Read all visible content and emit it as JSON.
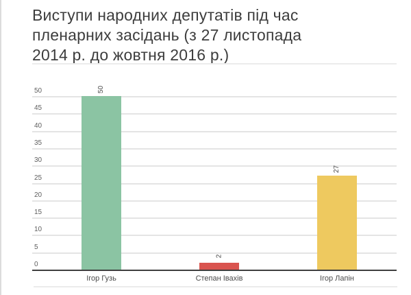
{
  "page": {
    "title": "Виступи народних депутатів під час пленарних засідань (з 27 листопада 2014 р. до жовтня 2016 р.)",
    "title_lines": [
      "Виступи народних депутатів під час",
      "пленарних засідань (з 27 листопада",
      "2014 р. до жовтня 2016 р.)"
    ]
  },
  "chart_data": {
    "type": "bar",
    "title": "Виступи народних депутатів під час пленарних засідань (з 27 листопада 2014 р. до жовтня 2016 р.)",
    "categories": [
      "Ігор Гузь",
      "Степан Івахів",
      "Ігор Лапін"
    ],
    "values": [
      50,
      2,
      27
    ],
    "value_labels": [
      "50",
      "2",
      "27"
    ],
    "bar_colors": [
      "#8bc4a3",
      "#d9544f",
      "#eec95f"
    ],
    "xlabel": "",
    "ylabel": "",
    "ylim": [
      0,
      50
    ],
    "yticks": [
      0,
      5,
      10,
      15,
      20,
      25,
      30,
      35,
      40,
      45,
      50
    ],
    "grid": true,
    "legend": "none",
    "value_label_rotation_deg": -90
  },
  "colors": {
    "title_text": "#3d3d3d",
    "axis_text": "#5e5e5e",
    "category_text": "#4a4a4a",
    "gridline": "#e4e4e4",
    "baseline": "#3f3f3f",
    "divider": "#ebebeb",
    "left_border": "#dcdcdc",
    "background": "#ffffff"
  }
}
